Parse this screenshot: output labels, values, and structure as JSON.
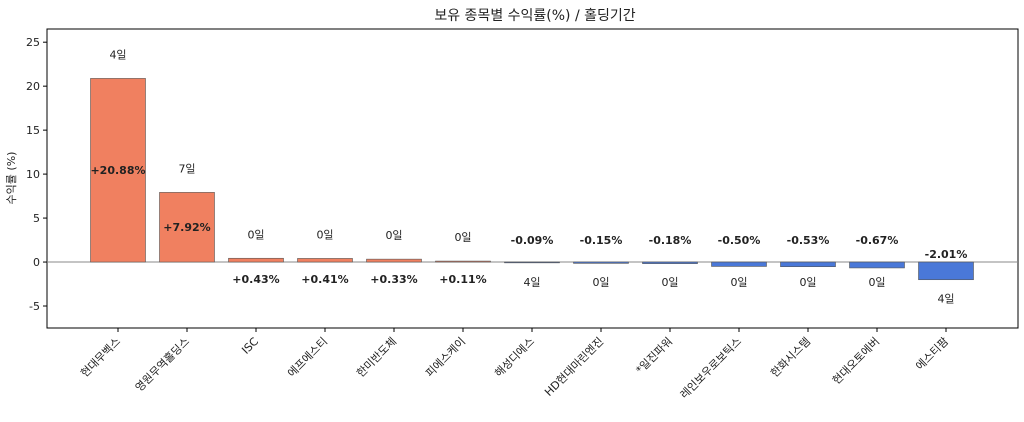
{
  "chart_data": {
    "type": "bar",
    "title": "보유 종목별 수익률(%) / 홀딩기간",
    "xlabel": "",
    "ylabel": "수익률 (%)",
    "ylim": [
      -7.5,
      26.5
    ],
    "yticks": [
      -5,
      0,
      5,
      10,
      15,
      20,
      25
    ],
    "grid": false,
    "categories": [
      "현대무벡스",
      "영원무역홀딩스",
      "ISC",
      "에프에스티",
      "한미반도체",
      "피에스케이",
      "해성디에스",
      "HD현대마린엔진",
      "*일진파워",
      "레인보우로보틱스",
      "한화시스템",
      "현대오토에버",
      "에스티팜"
    ],
    "values": [
      20.88,
      7.92,
      0.43,
      0.41,
      0.33,
      0.11,
      -0.09,
      -0.15,
      -0.18,
      -0.5,
      -0.53,
      -0.67,
      -2.01
    ],
    "value_labels": [
      "+20.88%",
      "+7.92%",
      "+0.43%",
      "+0.41%",
      "+0.33%",
      "+0.11%",
      "-0.09%",
      "-0.15%",
      "-0.18%",
      "-0.50%",
      "-0.53%",
      "-0.67%",
      "-2.01%"
    ],
    "holding_labels": [
      "4일",
      "7일",
      "0일",
      "0일",
      "0일",
      "0일",
      "4일",
      "0일",
      "0일",
      "0일",
      "0일",
      "0일",
      "4일"
    ],
    "colors": {
      "positive": "#f08060",
      "negative": "#4a78d8",
      "edge": "#555555",
      "zero_line": "#888888"
    }
  }
}
